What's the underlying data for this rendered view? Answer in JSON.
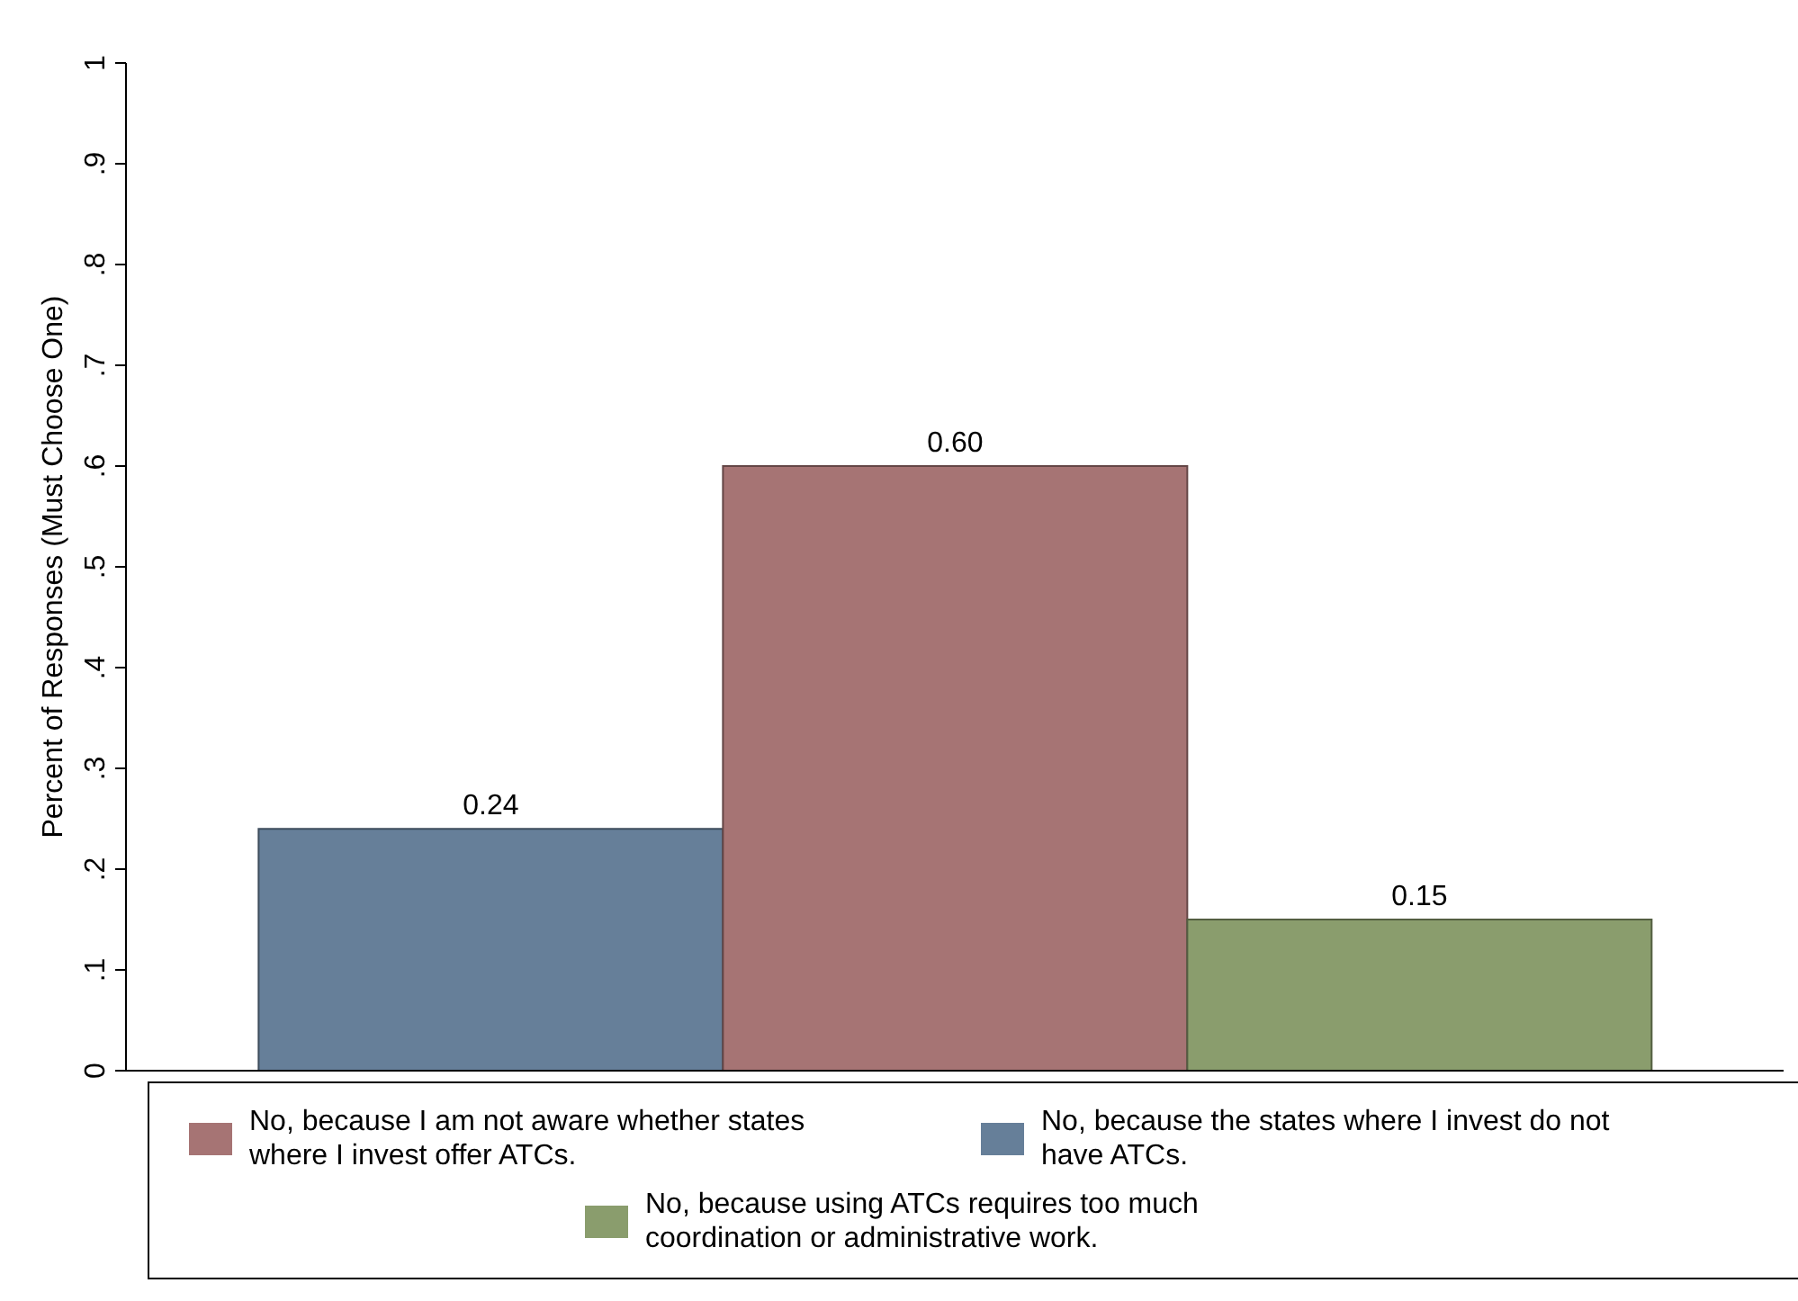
{
  "chart_data": {
    "type": "bar",
    "ylabel": "Percent of Responses (Must Choose One)",
    "categories": [
      null
    ],
    "series": [
      {
        "name": "No, because the states where I invest do not have ATCs.",
        "color": "#667f99",
        "values": [
          0.24
        ],
        "value_labels": [
          "0.24"
        ]
      },
      {
        "name": "No, because I am not aware whether states where I invest offer ATCs.",
        "color": "#a67474",
        "values": [
          0.6
        ],
        "value_labels": [
          "0.60"
        ]
      },
      {
        "name": "No, because using ATCs requires too much coordination or administrative work.",
        "color": "#8a9d6d",
        "values": [
          0.15
        ],
        "value_labels": [
          "0.15"
        ]
      }
    ],
    "ylim": [
      0,
      1
    ],
    "yticks": [
      0,
      {
        "value": 0.1,
        "label": ".1"
      },
      {
        "value": 0.2,
        "label": ".2"
      },
      {
        "value": 0.3,
        "label": ".3"
      },
      {
        "value": 0.4,
        "label": ".4"
      },
      {
        "value": 0.5,
        "label": ".5"
      },
      {
        "value": 0.6,
        "label": ".6"
      },
      {
        "value": 0.7,
        "label": ".7"
      },
      {
        "value": 0.8,
        "label": ".8"
      },
      {
        "value": 0.9,
        "label": ".9"
      },
      1
    ],
    "grid": false,
    "legend": "bottom"
  }
}
